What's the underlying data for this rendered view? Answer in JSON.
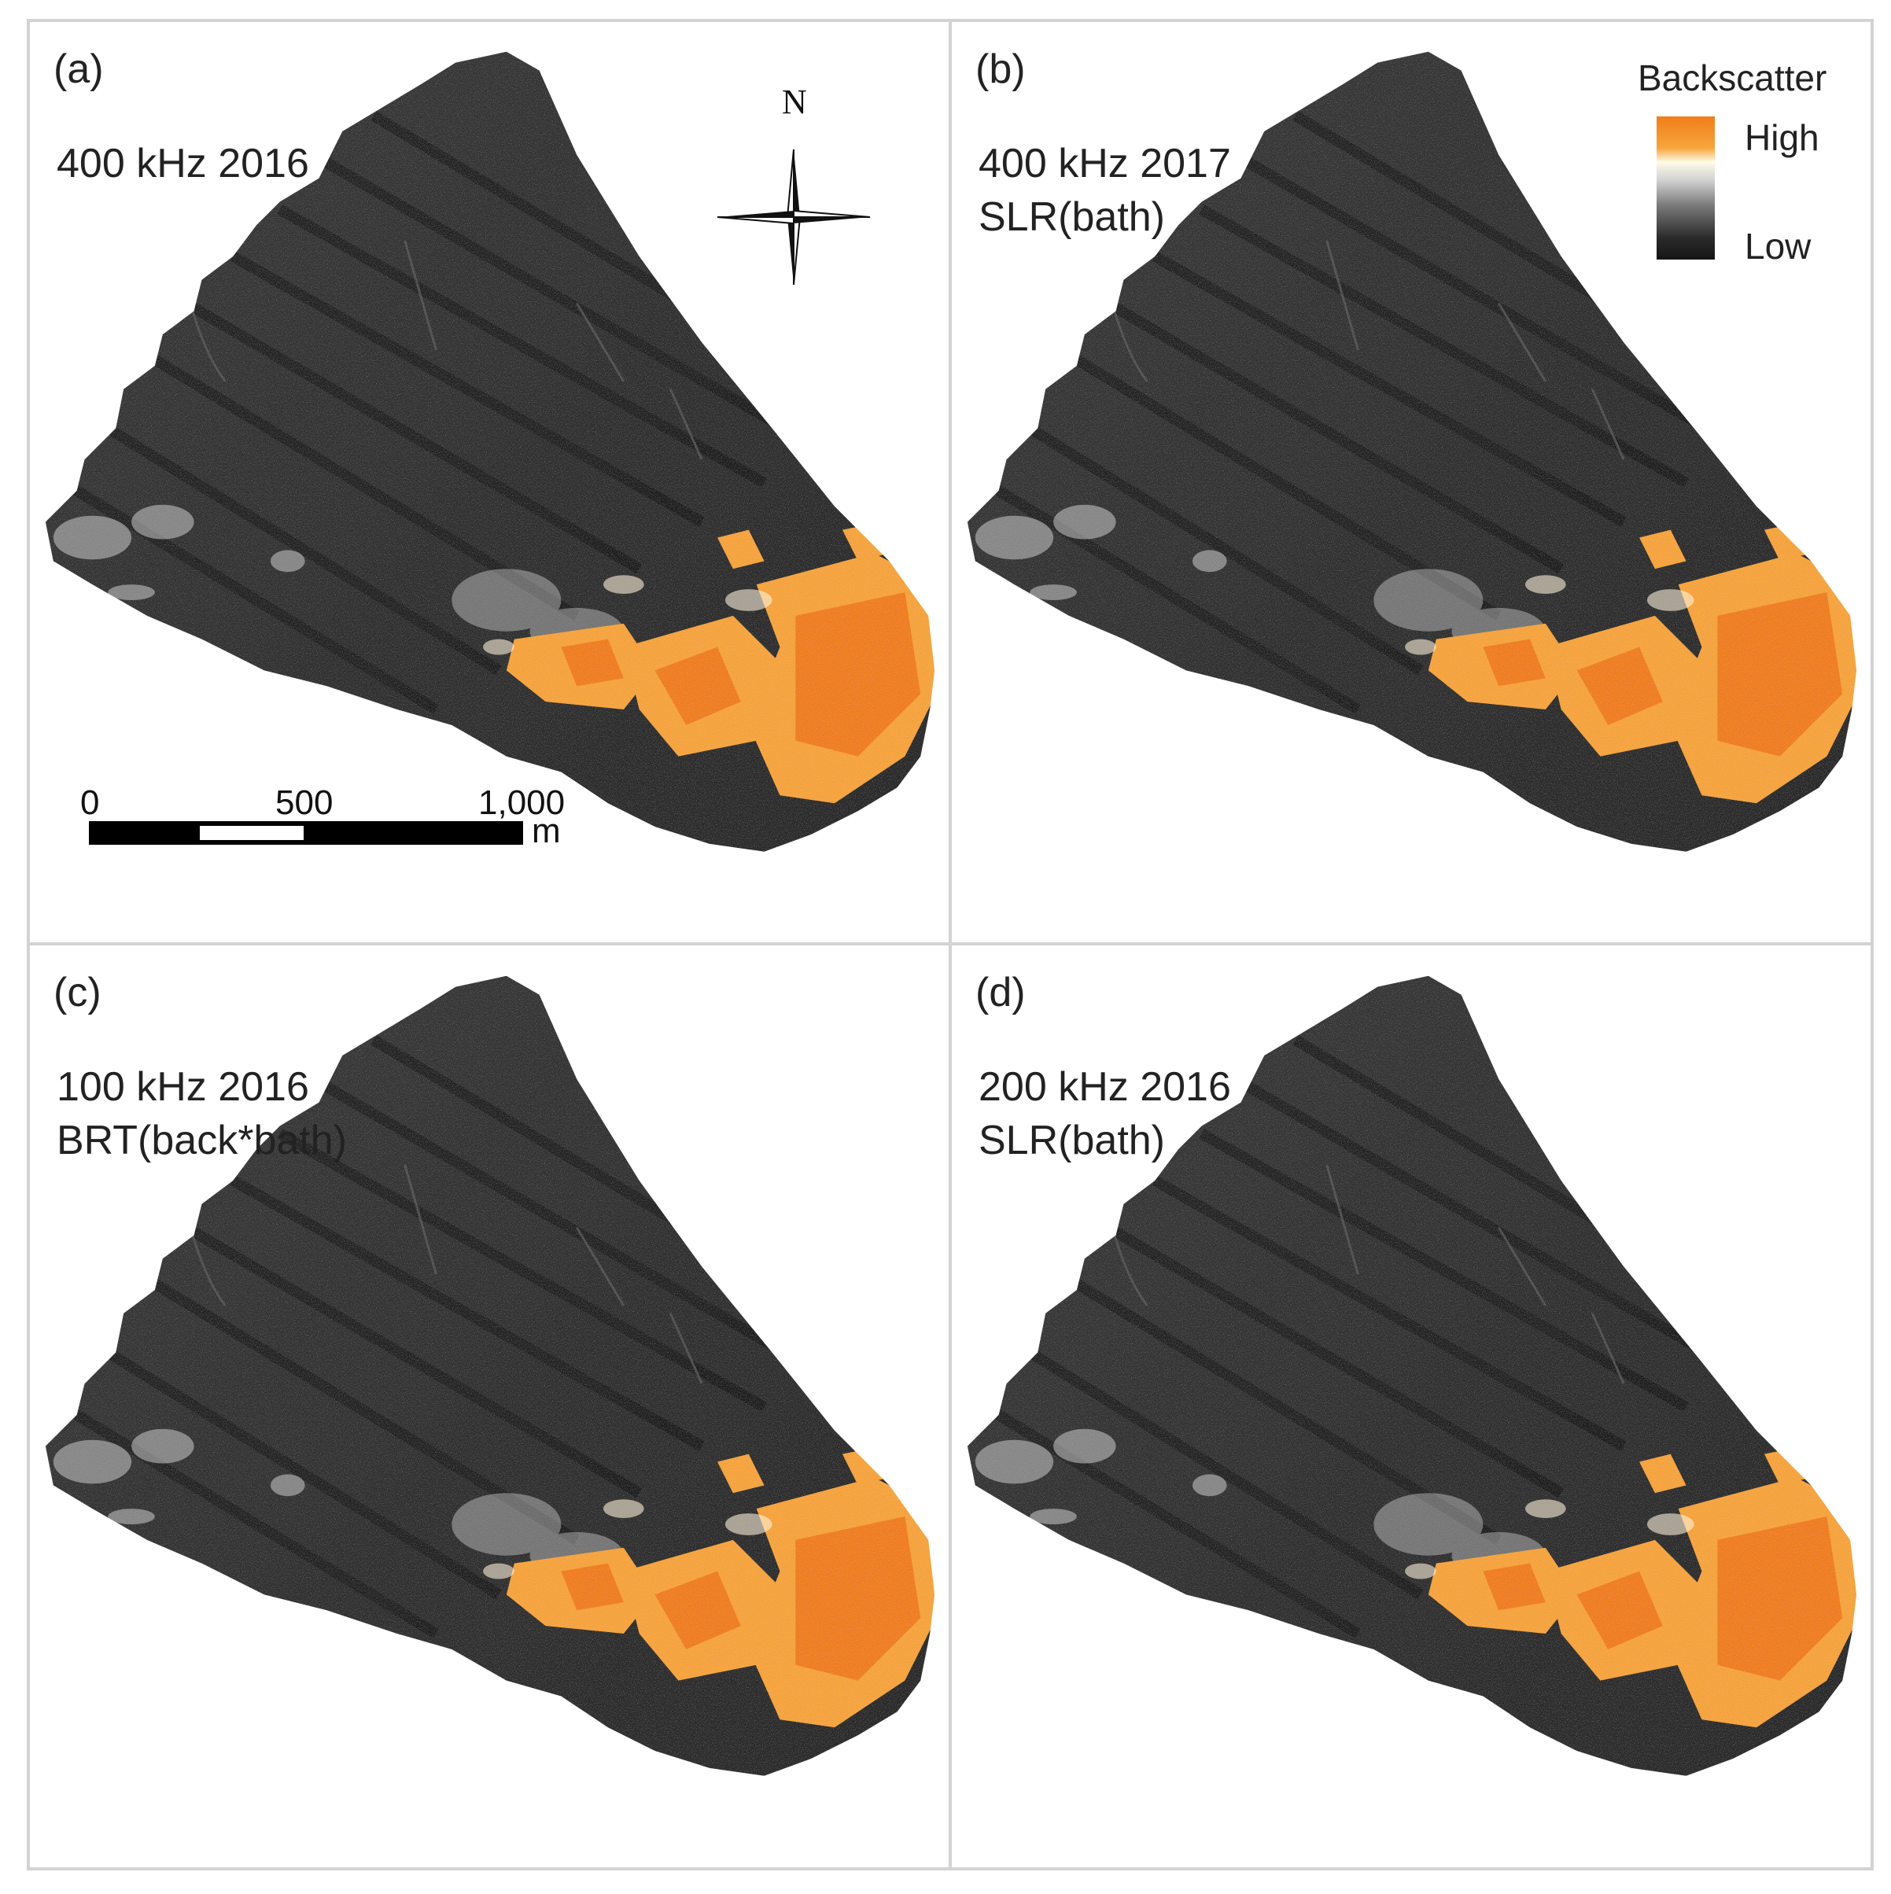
{
  "panels": [
    {
      "letter": "(a)",
      "line1": "400 kHz 2016",
      "line2": ""
    },
    {
      "letter": "(b)",
      "line1": "400 kHz 2017",
      "line2": "SLR(bath)"
    },
    {
      "letter": "(c)",
      "line1": "100 kHz 2016",
      "line2": "BRT(back*bath)"
    },
    {
      "letter": "(d)",
      "line1": "200 kHz 2016",
      "line2": "SLR(bath)"
    }
  ],
  "legend": {
    "title": "Backscatter",
    "high": "High",
    "low": "Low",
    "colors": {
      "high": "#f07e1a",
      "mid": "#ffffff",
      "low": "#151515"
    }
  },
  "scale_bar": {
    "ticks": [
      "0",
      "500",
      "1,000"
    ],
    "unit": "m"
  },
  "north_arrow": {
    "label": "N"
  }
}
